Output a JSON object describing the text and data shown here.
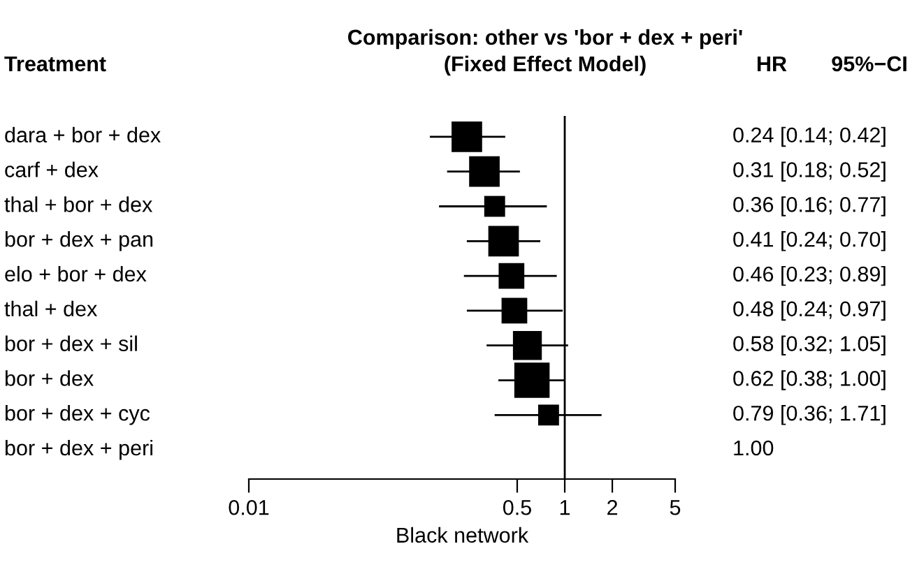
{
  "chart_data": {
    "type": "scatter",
    "orientation": "horizontal",
    "title": "Comparison: other vs 'bor + dex + peri'",
    "subtitle": "(Fixed Effect Model)",
    "xlabel": "Black network",
    "categories": [
      "dara + bor + dex",
      "carf + dex",
      "thal + bor + dex",
      "bor + dex + pan",
      "elo + bor + dex",
      "thal + dex",
      "bor + dex + sil",
      "bor + dex",
      "bor + dex + cyc",
      "bor + dex + peri"
    ],
    "values": [
      0.24,
      0.31,
      0.36,
      0.41,
      0.46,
      0.48,
      0.58,
      0.62,
      0.79,
      null
    ],
    "errors": [
      [
        0.14,
        0.42
      ],
      [
        0.18,
        0.52
      ],
      [
        0.16,
        0.77
      ],
      [
        0.24,
        0.7
      ],
      [
        0.23,
        0.89
      ],
      [
        0.24,
        0.97
      ],
      [
        0.32,
        1.05
      ],
      [
        0.38,
        1.0
      ],
      [
        0.36,
        1.71
      ],
      null
    ],
    "sizes": [
      0.75,
      0.75,
      0.35,
      0.75,
      0.53,
      0.53,
      0.67,
      1,
      0.35,
      null
    ],
    "value_labels": [
      "0.24 [0.14; 0.42]",
      "0.31 [0.18; 0.52]",
      "0.36 [0.16; 0.77]",
      "0.41 [0.24; 0.70]",
      "0.46 [0.23; 0.89]",
      "0.48 [0.24; 0.97]",
      "0.58 [0.32; 1.05]",
      "0.62 [0.38; 1.00]",
      "0.79 [0.36; 1.71]",
      null
    ],
    "color": "#000000",
    "marker": "square",
    "log": "x",
    "xlim": [
      0.01,
      5
    ],
    "xticks": [
      0.01,
      0.5,
      1,
      2,
      5
    ],
    "ref_lines": [
      {
        "axis": "x",
        "value": 1
      }
    ],
    "annotations": [
      "Treatment",
      "HR",
      "95%−CI",
      "1.00"
    ],
    "grid": false,
    "legend": false
  }
}
